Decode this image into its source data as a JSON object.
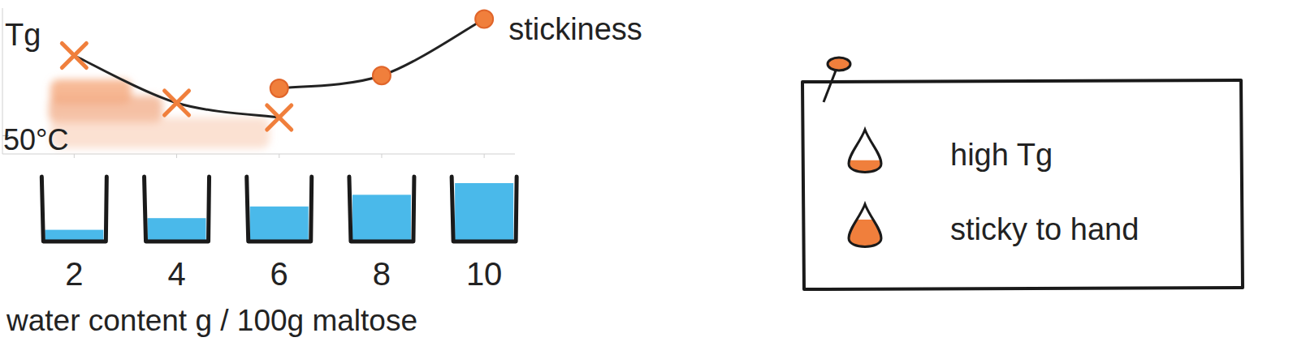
{
  "chart_data": {
    "type": "line",
    "x_label": "water content g / 100g maltose",
    "x": [
      2,
      4,
      6,
      8,
      10
    ],
    "xlim": [
      0.6,
      10.6
    ],
    "xticks": [
      2,
      4,
      6,
      8,
      10
    ],
    "ylim": [
      45,
      85
    ],
    "yticks": [
      {
        "value": 50,
        "label": "50°C"
      }
    ],
    "series": [
      {
        "name": "Tg",
        "color": "#f07f3c",
        "marker": "x",
        "values": [
          72,
          59,
          55,
          null,
          null
        ]
      },
      {
        "name": "stickiness",
        "color": "#f07f3c",
        "marker": "circle",
        "values": [
          null,
          null,
          63,
          66.5,
          82
        ]
      }
    ],
    "annotations": [
      "high Tg",
      "sticky to hand"
    ]
  }
}
